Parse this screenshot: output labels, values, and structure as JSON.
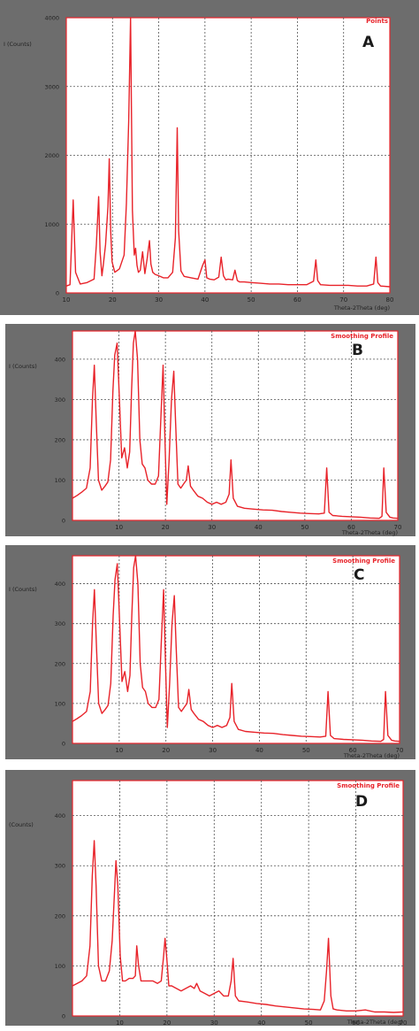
{
  "colors": {
    "frame_gray": "#6d6d6d",
    "plot_bg": "#ffffff",
    "grid": "#555555",
    "trace": "#e8232a",
    "letter": "#1a1a1a"
  },
  "chart_data": [
    {
      "type": "line",
      "panel_letter": "A",
      "legend": "Points",
      "ylabel": "I (Counts)",
      "xlabel": "Theta-2Theta (deg)",
      "xlim": [
        10,
        80
      ],
      "ylim": [
        0,
        4000
      ],
      "x_ticks": [
        10,
        20,
        30,
        40,
        50,
        60,
        70,
        80
      ],
      "y_ticks": [
        0,
        1000,
        2000,
        3000,
        4000
      ],
      "x_tick_labels": [
        "10",
        "20",
        "30",
        "40",
        "50",
        "60",
        "70",
        "80"
      ],
      "y_tick_labels": [
        "0",
        "1000",
        "2000",
        "3000",
        "4000"
      ],
      "series": [
        {
          "x": [
            10.0,
            10.8,
            11.5,
            12.0,
            13.0,
            14.5,
            16.0,
            16.5,
            17.0,
            17.3,
            17.7,
            18.0,
            18.5,
            19.0,
            19.3,
            19.6,
            19.9,
            20.5,
            21.5,
            22.5,
            23.0,
            23.5,
            23.9,
            24.3,
            24.7,
            25.0,
            25.3,
            25.6,
            26.0,
            26.5,
            27.0,
            27.5,
            28.0,
            28.3,
            28.7,
            29.2,
            30.0,
            31.0,
            32.0,
            33.0,
            33.6,
            34.0,
            34.3,
            34.8,
            35.5,
            37.0,
            38.5,
            39.5,
            40.0,
            40.4,
            41.0,
            42.0,
            43.0,
            43.5,
            44.0,
            44.5,
            45.0,
            46.0,
            46.5,
            47.0,
            47.5,
            48.5,
            50.0,
            52.0,
            54.0,
            56.0,
            58.0,
            60.0,
            62.0,
            63.5,
            64.0,
            64.4,
            65.0,
            67.0,
            69.0,
            71.0,
            73.0,
            75.0,
            76.5,
            77.0,
            77.4,
            78.0,
            80.0
          ],
          "y": [
            100,
            120,
            1350,
            300,
            130,
            150,
            200,
            700,
            1400,
            600,
            250,
            400,
            700,
            1250,
            1950,
            900,
            450,
            300,
            350,
            550,
            1300,
            2500,
            4000,
            1200,
            550,
            650,
            400,
            300,
            330,
            600,
            280,
            500,
            760,
            420,
            300,
            270,
            250,
            220,
            220,
            300,
            800,
            2400,
            900,
            320,
            240,
            220,
            200,
            400,
            480,
            220,
            200,
            190,
            230,
            520,
            250,
            190,
            200,
            190,
            330,
            180,
            160,
            160,
            150,
            140,
            130,
            130,
            120,
            120,
            120,
            170,
            480,
            180,
            120,
            110,
            110,
            110,
            100,
            100,
            130,
            520,
            150,
            100,
            90
          ]
        }
      ]
    },
    {
      "type": "line",
      "panel_letter": "B",
      "legend": "Smoothing Profile",
      "ylabel": "I (Counts)",
      "xlabel": "Theta-2Theta (deg)",
      "xlim": [
        0,
        70
      ],
      "ylim": [
        0,
        470
      ],
      "x_ticks": [
        0,
        10,
        20,
        30,
        40,
        50,
        60,
        70
      ],
      "y_ticks": [
        0,
        100,
        200,
        300,
        400
      ],
      "x_tick_labels": [
        "",
        "10",
        "20",
        "30",
        "40",
        "50",
        "60",
        "70"
      ],
      "y_tick_labels": [
        "0",
        "100",
        "200",
        "300",
        "400"
      ],
      "series": [
        {
          "x": [
            0,
            1,
            2,
            3,
            3.8,
            4.3,
            4.7,
            5.1,
            5.6,
            6.3,
            7.0,
            7.6,
            8.2,
            8.7,
            9.1,
            9.6,
            10.1,
            10.6,
            11.2,
            11.8,
            12.3,
            12.7,
            13.1,
            13.5,
            14.0,
            14.5,
            15.0,
            15.6,
            16.2,
            17.0,
            17.8,
            18.5,
            19.0,
            19.5,
            19.9,
            20.3,
            20.8,
            21.3,
            21.8,
            22.2,
            22.7,
            23.3,
            23.9,
            24.5,
            24.9,
            25.4,
            26.0,
            27.0,
            28.0,
            29.0,
            30.0,
            31.0,
            32.0,
            33.0,
            33.7,
            34.1,
            34.6,
            35.5,
            37.0,
            39.0,
            41.0,
            43.0,
            45.0,
            47.0,
            49.0,
            51.0,
            53.0,
            54.2,
            54.7,
            55.2,
            56.0,
            58.0,
            60.0,
            62.0,
            64.0,
            66.0,
            66.6,
            67.0,
            67.5,
            68.3,
            69.0,
            70.0
          ],
          "y": [
            55,
            62,
            70,
            80,
            130,
            300,
            385,
            250,
            100,
            75,
            85,
            95,
            150,
            320,
            410,
            440,
            300,
            155,
            180,
            130,
            170,
            320,
            440,
            470,
            400,
            200,
            140,
            130,
            100,
            90,
            90,
            110,
            250,
            385,
            200,
            40,
            150,
            300,
            370,
            240,
            90,
            80,
            90,
            100,
            135,
            85,
            75,
            60,
            55,
            45,
            40,
            45,
            40,
            45,
            65,
            150,
            55,
            35,
            30,
            28,
            26,
            25,
            22,
            20,
            18,
            17,
            16,
            18,
            130,
            20,
            12,
            10,
            9,
            8,
            6,
            5,
            10,
            130,
            20,
            8,
            6,
            5
          ]
        }
      ]
    },
    {
      "type": "line",
      "panel_letter": "C",
      "legend": "Smoothing Profile",
      "ylabel": "I (Counts)",
      "xlabel": "Theta-2Theta (deg)",
      "xlim": [
        0,
        70
      ],
      "ylim": [
        0,
        470
      ],
      "x_ticks": [
        0,
        10,
        20,
        30,
        40,
        50,
        60,
        70
      ],
      "y_ticks": [
        0,
        100,
        200,
        300,
        400
      ],
      "x_tick_labels": [
        "",
        "10",
        "20",
        "30",
        "40",
        "50",
        "60",
        "70"
      ],
      "y_tick_labels": [
        "0",
        "100",
        "200",
        "300",
        "400"
      ],
      "series": [
        {
          "x": [
            0,
            1,
            2,
            3,
            3.8,
            4.3,
            4.7,
            5.1,
            5.6,
            6.3,
            7.0,
            7.6,
            8.2,
            8.7,
            9.1,
            9.6,
            10.1,
            10.6,
            11.2,
            11.8,
            12.3,
            12.7,
            13.1,
            13.5,
            14.0,
            14.5,
            15.0,
            15.6,
            16.2,
            17.0,
            17.8,
            18.5,
            19.0,
            19.5,
            19.9,
            20.3,
            20.8,
            21.3,
            21.8,
            22.2,
            22.7,
            23.3,
            23.9,
            24.5,
            24.9,
            25.4,
            26.0,
            27.0,
            28.0,
            29.0,
            30.0,
            31.0,
            32.0,
            33.0,
            33.7,
            34.1,
            34.6,
            35.5,
            37.0,
            39.0,
            41.0,
            43.0,
            45.0,
            47.0,
            49.0,
            51.0,
            53.0,
            54.2,
            54.7,
            55.2,
            56.0,
            58.0,
            60.0,
            62.0,
            64.0,
            66.0,
            66.6,
            67.0,
            67.5,
            68.3,
            69.0,
            70.0
          ],
          "y": [
            55,
            62,
            70,
            80,
            130,
            300,
            385,
            250,
            100,
            75,
            85,
            95,
            150,
            320,
            410,
            450,
            300,
            155,
            180,
            130,
            170,
            320,
            440,
            470,
            400,
            200,
            140,
            130,
            100,
            90,
            90,
            110,
            250,
            385,
            200,
            40,
            150,
            300,
            370,
            240,
            90,
            80,
            90,
            100,
            135,
            85,
            75,
            60,
            55,
            45,
            40,
            45,
            40,
            45,
            65,
            150,
            55,
            35,
            30,
            28,
            26,
            25,
            22,
            20,
            18,
            17,
            16,
            18,
            130,
            20,
            12,
            10,
            9,
            8,
            6,
            5,
            10,
            130,
            20,
            8,
            6,
            5
          ]
        }
      ]
    },
    {
      "type": "line",
      "panel_letter": "D",
      "legend": "Smoothing Profile",
      "ylabel": "(Counts)",
      "xlabel": "Theta-2Theta (deg)",
      "xlim": [
        0,
        70
      ],
      "ylim": [
        0,
        470
      ],
      "x_ticks": [
        0,
        10,
        20,
        30,
        40,
        50,
        60,
        70
      ],
      "y_ticks": [
        0,
        100,
        200,
        300,
        400
      ],
      "x_tick_labels": [
        "",
        "10",
        "20",
        "30",
        "40",
        "50",
        "60",
        "70"
      ],
      "y_tick_labels": [
        "0",
        "100",
        "200",
        "300",
        "400"
      ],
      "series": [
        {
          "x": [
            0,
            1,
            2,
            3,
            3.7,
            4.2,
            4.6,
            5.0,
            5.5,
            6.2,
            7.0,
            7.8,
            8.4,
            8.9,
            9.2,
            9.6,
            10.1,
            10.6,
            11.2,
            12.0,
            12.8,
            13.3,
            13.6,
            14.0,
            14.5,
            15.2,
            16.0,
            17.0,
            18.0,
            18.8,
            19.3,
            19.6,
            20.0,
            20.4,
            21.0,
            22.0,
            23.0,
            24.0,
            25.0,
            25.8,
            26.3,
            27.0,
            28.0,
            29.0,
            30.0,
            31.0,
            32.0,
            33.0,
            33.6,
            34.0,
            34.5,
            35.2,
            37.0,
            39.0,
            41.0,
            43.0,
            45.0,
            47.0,
            49.0,
            51.0,
            52.5,
            53.3,
            53.8,
            54.2,
            54.7,
            55.2,
            56.0,
            58.0,
            60.0,
            62.0,
            64.0,
            66.0,
            68.0,
            70.0
          ],
          "y": [
            60,
            65,
            70,
            80,
            140,
            280,
            350,
            260,
            100,
            70,
            70,
            90,
            150,
            250,
            310,
            260,
            120,
            70,
            70,
            75,
            75,
            80,
            140,
            100,
            70,
            70,
            70,
            70,
            65,
            70,
            120,
            155,
            110,
            60,
            60,
            55,
            50,
            55,
            60,
            55,
            65,
            50,
            45,
            40,
            45,
            50,
            40,
            40,
            70,
            115,
            40,
            30,
            28,
            25,
            23,
            20,
            18,
            16,
            14,
            13,
            12,
            30,
            90,
            155,
            40,
            14,
            12,
            10,
            10,
            12,
            8,
            8,
            7,
            8
          ]
        }
      ]
    }
  ]
}
